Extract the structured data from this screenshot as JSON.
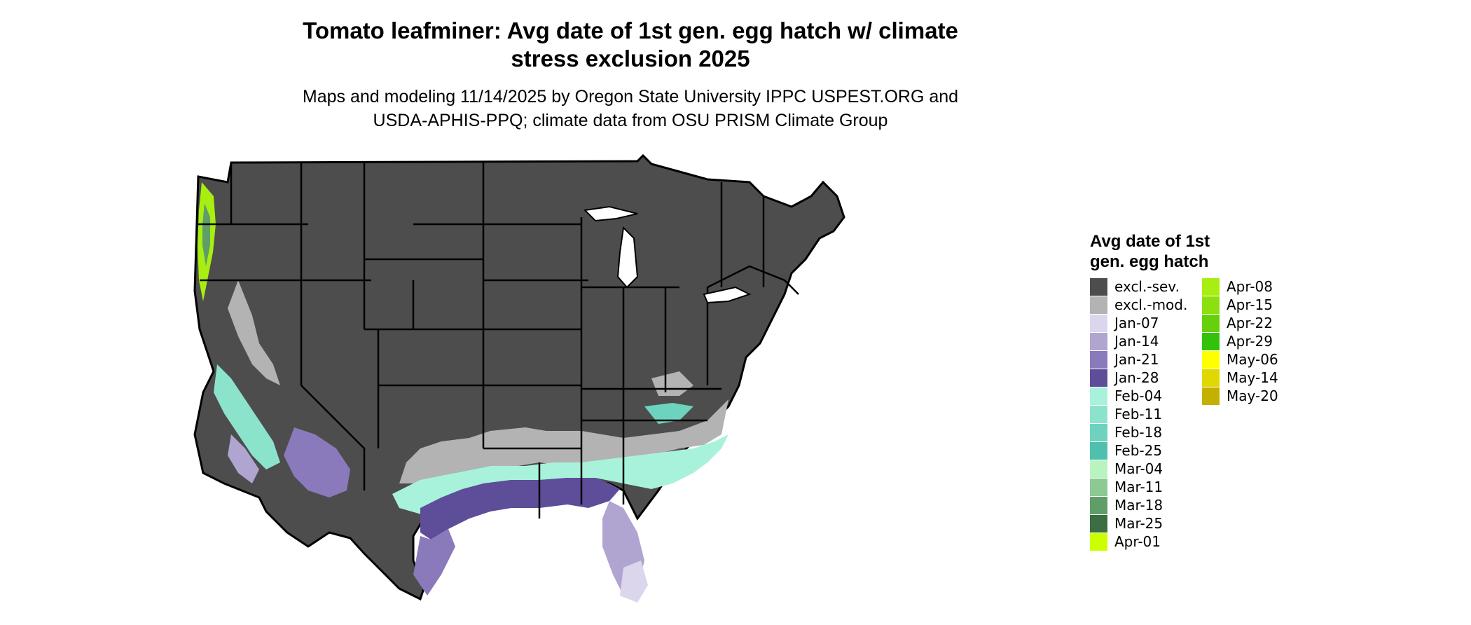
{
  "title_line1": "Tomato leafminer: Avg date of 1st gen. egg hatch w/ climate",
  "title_line2": "stress exclusion 2025",
  "subtitle_line1": "Maps and modeling 11/14/2025 by Oregon State University IPPC USPEST.ORG and",
  "subtitle_line2": "USDA-APHIS-PPQ; climate data from OSU PRISM Climate Group",
  "legend": {
    "title_line1": "Avg date of 1st",
    "title_line2": "gen. egg hatch",
    "items": [
      {
        "label": "excl.-sev.",
        "color": "#4d4d4d"
      },
      {
        "label": "excl.-mod.",
        "color": "#b3b3b3"
      },
      {
        "label": "Jan-07",
        "color": "#dcd6ec"
      },
      {
        "label": "Jan-14",
        "color": "#b0a4d0"
      },
      {
        "label": "Jan-21",
        "color": "#8a79bb"
      },
      {
        "label": "Jan-28",
        "color": "#5e4d99"
      },
      {
        "label": "Feb-04",
        "color": "#a8f2dc"
      },
      {
        "label": "Feb-11",
        "color": "#8ce3cc"
      },
      {
        "label": "Feb-18",
        "color": "#6dd3bf"
      },
      {
        "label": "Feb-25",
        "color": "#4fc0ad"
      },
      {
        "label": "Mar-04",
        "color": "#b9f4c0"
      },
      {
        "label": "Mar-11",
        "color": "#8cc993"
      },
      {
        "label": "Mar-18",
        "color": "#5f9e68"
      },
      {
        "label": "Mar-25",
        "color": "#3b6e42"
      },
      {
        "label": "Apr-01",
        "color": "#ccff00"
      },
      {
        "label": "Apr-08",
        "color": "#a8ee10"
      },
      {
        "label": "Apr-15",
        "color": "#8ce010"
      },
      {
        "label": "Apr-22",
        "color": "#66d10a"
      },
      {
        "label": "Apr-29",
        "color": "#33c20a"
      },
      {
        "label": "May-06",
        "color": "#ffff00"
      },
      {
        "label": "May-14",
        "color": "#e0d800"
      },
      {
        "label": "May-20",
        "color": "#c4b000"
      }
    ]
  }
}
